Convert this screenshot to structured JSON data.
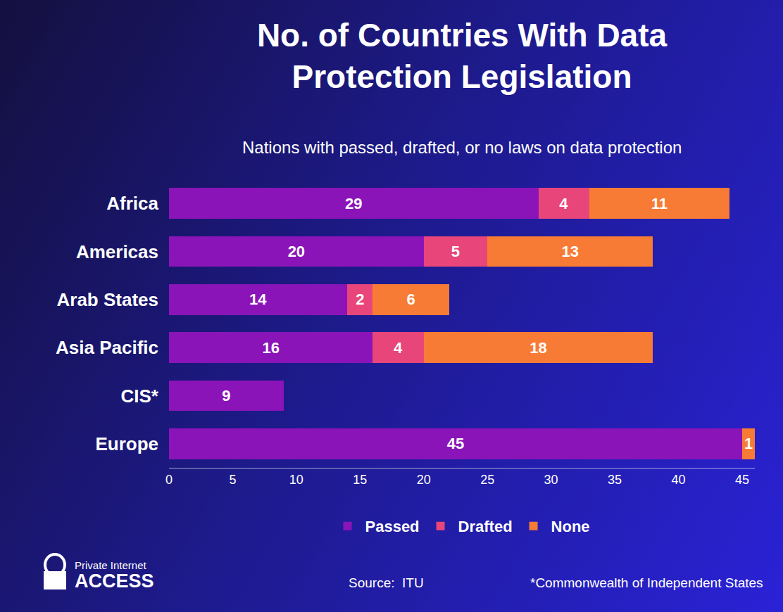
{
  "chart_data": {
    "type": "bar",
    "title": "No. of Countries With Data Protection Legislation",
    "subtitle": "Nations with passed, drafted, or no laws on data protection",
    "orientation": "horizontal",
    "stacked": true,
    "data_labels": true,
    "grid": false,
    "legend": "bottom",
    "categories": [
      "Africa",
      "Americas",
      "Arab States",
      "Asia Pacific",
      "CIS*",
      "Europe"
    ],
    "series": [
      {
        "name": "Passed",
        "color": "#8a14b8",
        "values": [
          29,
          20,
          14,
          16,
          9,
          45
        ]
      },
      {
        "name": "Drafted",
        "color": "#e8457a",
        "values": [
          4,
          5,
          2,
          4,
          null,
          null
        ]
      },
      {
        "name": "None",
        "color": "#f77b35",
        "values": [
          11,
          13,
          6,
          18,
          null,
          1
        ]
      }
    ],
    "xlim": [
      0,
      46
    ],
    "xticks": [
      0,
      5,
      10,
      15,
      20,
      25,
      30,
      35,
      40,
      45
    ],
    "annotations": [
      "Source:  ITU",
      "*Commonwealth of Independent States",
      "Private Internet",
      "ACCESS"
    ]
  }
}
